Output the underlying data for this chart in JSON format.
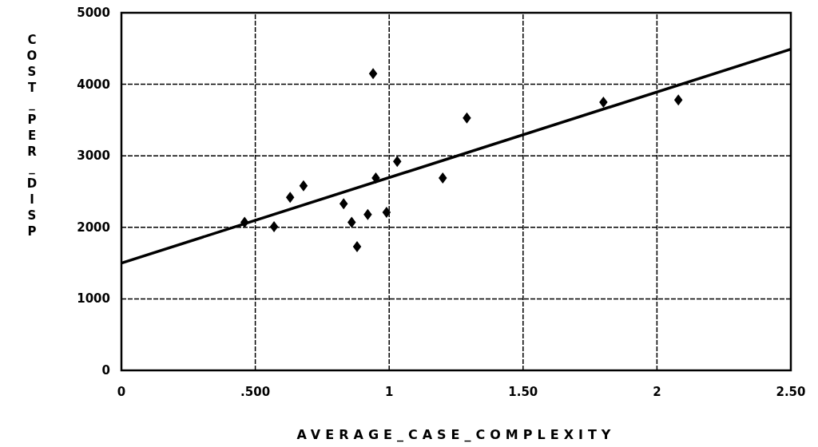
{
  "chart_data": {
    "type": "scatter",
    "xlabel": "AVERAGE_CASE_COMPLEXITY",
    "ylabel": "COST_PER_DISP",
    "xlim": [
      0,
      2.5
    ],
    "xticks": [
      0,
      {
        "value": 0.5,
        "label": ".500"
      },
      1,
      {
        "value": 1.5,
        "label": "1.50"
      },
      2,
      {
        "value": 2.5,
        "label": "2.50"
      }
    ],
    "ylim": [
      0,
      5000
    ],
    "yticks": [
      0,
      1000,
      2000,
      3000,
      4000,
      5000
    ],
    "grid": true,
    "marker": "diamond",
    "series": [
      {
        "color": "#000000",
        "x": [
          0.46,
          0.57,
          0.63,
          0.68,
          0.83,
          0.86,
          0.88,
          0.92,
          0.94,
          0.95,
          0.99,
          1.03,
          1.2,
          1.29,
          1.8,
          2.08
        ],
        "values": [
          2070,
          2010,
          2420,
          2580,
          2330,
          2070,
          1730,
          2180,
          4150,
          2690,
          2210,
          2920,
          2690,
          3530,
          3750,
          3780
        ]
      },
      {
        "type": "line",
        "color": "#000000",
        "marker": "none",
        "x": [
          0,
          2.5
        ],
        "values": [
          1500,
          4490
        ]
      }
    ]
  }
}
